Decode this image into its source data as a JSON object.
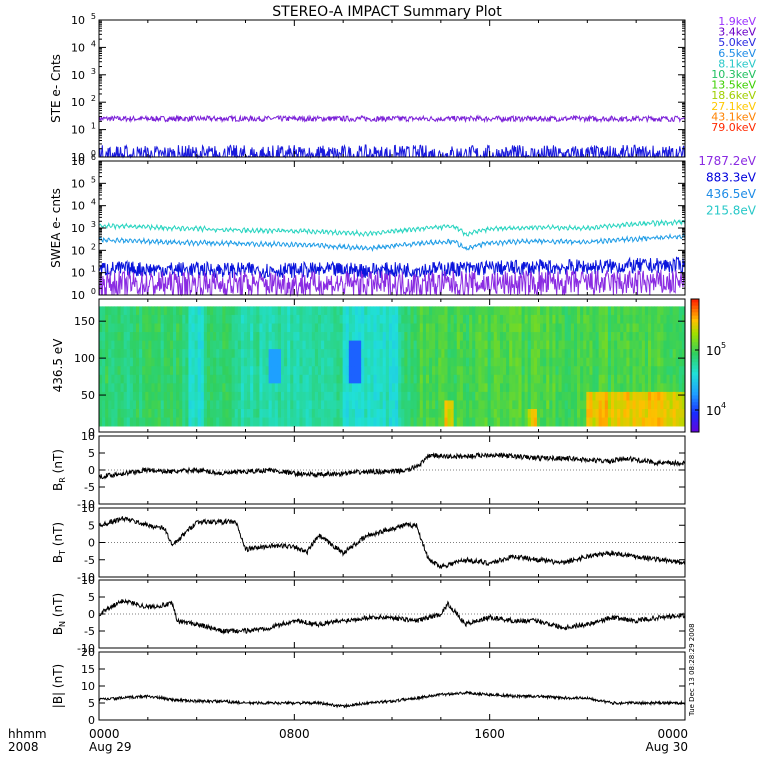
{
  "title": "STEREO-A IMPACT Summary Plot",
  "footer": {
    "hhmm_label": "hhmm",
    "year_label": "2008",
    "ticks": [
      {
        "label": "0000",
        "sub": "Aug 29",
        "hour": 0
      },
      {
        "label": "0800",
        "sub": "",
        "hour": 8
      },
      {
        "label": "1600",
        "sub": "",
        "hour": 16
      },
      {
        "label": "0000",
        "sub": "Aug 30",
        "hour": 24
      }
    ],
    "timestamp": "Tue Dec 13 08:28:29 2008"
  },
  "ste_legend": [
    {
      "label": "1.9keV",
      "color": "#9b30ff"
    },
    {
      "label": "3.4keV",
      "color": "#6a00c8"
    },
    {
      "label": "5.0keV",
      "color": "#2a2ae0"
    },
    {
      "label": "6.5keV",
      "color": "#1e8ce6"
    },
    {
      "label": "8.1keV",
      "color": "#28c8c8"
    },
    {
      "label": "10.3keV",
      "color": "#20c060"
    },
    {
      "label": "13.5keV",
      "color": "#3cd000"
    },
    {
      "label": "18.6keV",
      "color": "#a0d000"
    },
    {
      "label": "27.1keV",
      "color": "#ffc800"
    },
    {
      "label": "43.1keV",
      "color": "#ff8200"
    },
    {
      "label": "79.0keV",
      "color": "#ff2800"
    }
  ],
  "swea_legend": [
    {
      "label": "1787.2eV",
      "color": "#8a2be2"
    },
    {
      "label": "883.3eV",
      "color": "#0000dc"
    },
    {
      "label": "436.5eV",
      "color": "#1e8ce6"
    },
    {
      "label": "215.8eV",
      "color": "#28c8c8"
    }
  ],
  "chart_data": [
    {
      "type": "line",
      "panel": "STE",
      "ylabel": "STE e- Cnts",
      "yscale": "log",
      "ylim": [
        1,
        100000
      ],
      "ytick_exponents": [
        0,
        1,
        2,
        3,
        4,
        5
      ],
      "xlim_hours": [
        0,
        24
      ],
      "series": [
        {
          "name": "1.9keV",
          "color": "#7b20d8",
          "level": 25,
          "noise": 0.1
        },
        {
          "name": "5.0keV",
          "color": "#1a1adc",
          "level": 1.1,
          "noise": 0.4
        }
      ]
    },
    {
      "type": "line",
      "panel": "SWEA",
      "ylabel": "SWEA e- cnts",
      "yscale": "log",
      "ylim": [
        1,
        1000000
      ],
      "ytick_exponents": [
        0,
        1,
        2,
        3,
        4,
        5,
        6
      ],
      "xlim_hours": [
        0,
        24
      ],
      "series": [
        {
          "name": "215.8eV",
          "color": "#28d4c0",
          "profile": [
            [
              0,
              1300
            ],
            [
              3,
              1000
            ],
            [
              6,
              800
            ],
            [
              9,
              700
            ],
            [
              11,
              550
            ],
            [
              13,
              900
            ],
            [
              14.5,
              1200
            ],
            [
              15,
              500
            ],
            [
              16,
              900
            ],
            [
              18,
              1100
            ],
            [
              20,
              1000
            ],
            [
              22,
              1500
            ],
            [
              24,
              1900
            ]
          ]
        },
        {
          "name": "436.5eV",
          "color": "#1e9ce6",
          "profile": [
            [
              0,
              300
            ],
            [
              3,
              230
            ],
            [
              6,
              200
            ],
            [
              9,
              170
            ],
            [
              11,
              120
            ],
            [
              13,
              200
            ],
            [
              14.5,
              260
            ],
            [
              15,
              110
            ],
            [
              16,
              220
            ],
            [
              18,
              260
            ],
            [
              20,
              230
            ],
            [
              22,
              330
            ],
            [
              24,
              420
            ]
          ]
        },
        {
          "name": "883.3eV",
          "color": "#0a14dc",
          "profile": [
            [
              0,
              15
            ],
            [
              6,
              13
            ],
            [
              12,
              13
            ],
            [
              16,
              16
            ],
            [
              20,
              18
            ],
            [
              24,
              22
            ]
          ],
          "noise": 0.35
        },
        {
          "name": "1787.2eV",
          "color": "#8a2be2",
          "profile": [
            [
              0,
              3
            ],
            [
              12,
              3
            ],
            [
              24,
              3.5
            ]
          ],
          "noise": 0.6
        }
      ]
    },
    {
      "type": "heatmap",
      "panel": "PAD",
      "ylabel": "436.5 eV",
      "ylim": [
        0,
        180
      ],
      "yticks": [
        0,
        50,
        100,
        150
      ],
      "colorbar": {
        "ticks": [
          "10^5",
          "10^4"
        ],
        "scale": "log"
      },
      "xlim_hours": [
        0,
        24
      ]
    },
    {
      "type": "line",
      "panel": "BR",
      "ylabel": "B_R (nT)",
      "ylim": [
        -10,
        10
      ],
      "yticks": [
        -10,
        -5,
        0,
        5,
        10
      ],
      "x_hours": [
        0,
        1,
        2,
        3,
        4,
        5,
        6,
        7,
        8,
        9,
        10,
        11,
        12,
        12.7,
        13.2,
        13.6,
        14,
        15,
        16,
        17,
        18,
        19,
        20,
        21,
        21.5,
        22,
        23,
        24
      ],
      "values": [
        -2,
        -1,
        0,
        -0.5,
        0,
        -1,
        -0.5,
        0,
        -1,
        -1.5,
        -1,
        -0.5,
        -0.5,
        0,
        2,
        4.5,
        4,
        4,
        4.5,
        4,
        3.5,
        3.5,
        3,
        2.5,
        3.5,
        3,
        2,
        2
      ]
    },
    {
      "type": "line",
      "panel": "BT",
      "ylabel": "B_T (nT)",
      "ylim": [
        -10,
        10
      ],
      "yticks": [
        -10,
        -5,
        0,
        5,
        10
      ],
      "x_hours": [
        0,
        0.5,
        1,
        2,
        2.7,
        3,
        4,
        5,
        5.6,
        6,
        7,
        8,
        8.5,
        9,
        10,
        11,
        12,
        12.5,
        13,
        13.5,
        14,
        15,
        16,
        17,
        18,
        19,
        20,
        21,
        22,
        23,
        24
      ],
      "values": [
        5,
        6,
        7,
        5,
        4,
        -1,
        6,
        6,
        6,
        -2,
        -1,
        -1,
        -3,
        2,
        -3,
        2,
        4,
        5,
        5,
        -5,
        -7,
        -5,
        -6,
        -4,
        -5,
        -6,
        -4,
        -3,
        -4,
        -5,
        -6
      ]
    },
    {
      "type": "line",
      "panel": "BN",
      "ylabel": "B_N (nT)",
      "ylim": [
        -10,
        10
      ],
      "yticks": [
        -10,
        -5,
        0,
        5,
        10
      ],
      "x_hours": [
        0,
        0.5,
        1,
        2,
        3,
        3.2,
        4,
        5,
        6,
        7,
        8,
        9,
        10,
        11,
        12,
        13,
        14,
        14.3,
        15,
        16,
        17,
        18,
        19,
        20,
        21,
        22,
        23,
        24
      ],
      "values": [
        0,
        2,
        4,
        2,
        3,
        -2,
        -3,
        -5,
        -5,
        -4,
        -2,
        -3,
        -2,
        -1,
        -1,
        -2,
        0,
        3,
        -3,
        -1,
        -2,
        -2,
        -4,
        -3,
        -1,
        -2,
        -1,
        -0.5
      ]
    },
    {
      "type": "line",
      "panel": "Bmag",
      "ylabel": "|B| (nT)",
      "ylim": [
        0,
        20
      ],
      "yticks": [
        0,
        5,
        10,
        15,
        20
      ],
      "x_hours": [
        0,
        1,
        2,
        3,
        4,
        5,
        6,
        7,
        8,
        9,
        10,
        11,
        12,
        13,
        14,
        15,
        16,
        17,
        18,
        19,
        20,
        21,
        22,
        23,
        24
      ],
      "values": [
        6,
        6.5,
        7,
        6,
        5.5,
        5.5,
        5,
        5,
        5,
        5,
        4,
        5,
        5.5,
        6.5,
        7.5,
        8,
        7.5,
        7,
        7,
        6.5,
        6.5,
        5,
        5,
        5,
        5
      ]
    }
  ]
}
